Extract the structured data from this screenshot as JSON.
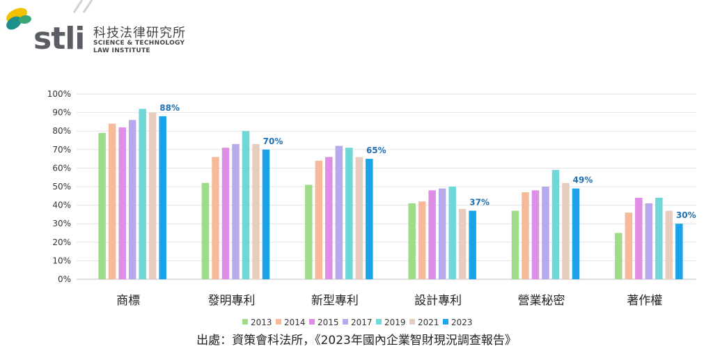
{
  "header": {
    "logo_text": "stli",
    "org_name_cn": "科技法律研究所",
    "org_name_en_line1": "SCIENCE & TECHNOLOGY",
    "org_name_en_line2": "LAW INSTITUTE"
  },
  "source_note": "出處：資策會科法所，《2023年國內企業智財現況調查報告》",
  "chart_data": {
    "type": "bar",
    "title": "",
    "xlabel": "",
    "ylabel": "",
    "ylim": [
      0,
      100
    ],
    "y_unit": "%",
    "y_ticks": [
      "0%",
      "10%",
      "20%",
      "30%",
      "40%",
      "50%",
      "60%",
      "70%",
      "80%",
      "90%",
      "100%"
    ],
    "grid": true,
    "legend_position": "bottom",
    "categories": [
      "商標",
      "發明專利",
      "新型專利",
      "設計專利",
      "營業秘密",
      "著作權"
    ],
    "series": [
      {
        "name": "2013",
        "color": "#9fdc8a",
        "values": [
          79,
          52,
          51,
          41,
          37,
          25
        ]
      },
      {
        "name": "2014",
        "color": "#f6b99a",
        "values": [
          84,
          66,
          64,
          42,
          47,
          36
        ]
      },
      {
        "name": "2015",
        "color": "#df8ee6",
        "values": [
          82,
          71,
          66,
          48,
          48,
          44
        ]
      },
      {
        "name": "2017",
        "color": "#b7a9ec",
        "values": [
          86,
          73,
          72,
          49,
          50,
          41
        ]
      },
      {
        "name": "2019",
        "color": "#6fd7d7",
        "values": [
          92,
          80,
          71,
          50,
          59,
          44
        ]
      },
      {
        "name": "2021",
        "color": "#e8cdbf",
        "values": [
          90,
          73,
          66,
          38,
          52,
          37
        ]
      },
      {
        "name": "2023",
        "color": "#1aa3e8",
        "values": [
          88,
          70,
          65,
          37,
          49,
          30
        ]
      }
    ],
    "data_labels": {
      "series": "2023",
      "texts": [
        "88%",
        "70%",
        "65%",
        "37%",
        "49%",
        "30%"
      ],
      "color": "#1f6fb2"
    }
  }
}
